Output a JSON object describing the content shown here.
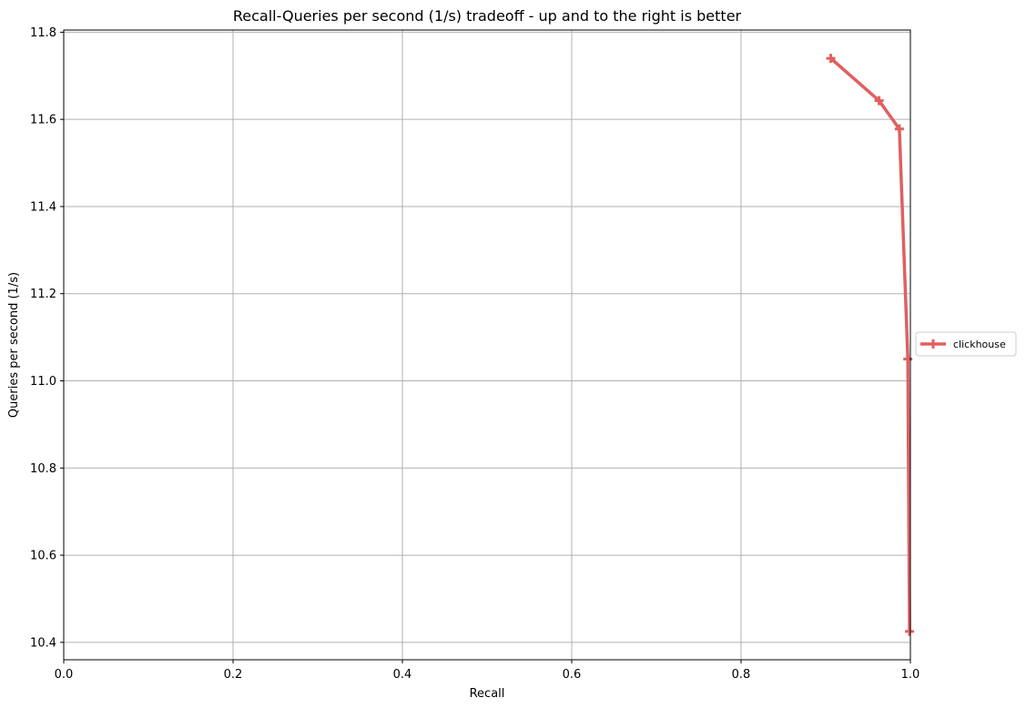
{
  "chart_data": {
    "type": "line",
    "title": "Recall-Queries per second (1/s) tradeoff - up and to the right is better",
    "xlabel": "Recall",
    "ylabel": "Queries per second (1/s)",
    "xlim": [
      0.0,
      1.0
    ],
    "ylim": [
      10.36,
      11.805
    ],
    "grid": true,
    "legend_position": "center-right-outside",
    "xticks": [
      0.0,
      0.2,
      0.4,
      0.6,
      0.8,
      1.0
    ],
    "xtick_labels": [
      "0.0",
      "0.2",
      "0.4",
      "0.6",
      "0.8",
      "1.0"
    ],
    "yticks": [
      10.4,
      10.6,
      10.8,
      11.0,
      11.2,
      11.4,
      11.6,
      11.8
    ],
    "ytick_labels": [
      "10.4",
      "10.6",
      "10.8",
      "11.0",
      "11.2",
      "11.4",
      "11.6",
      "11.8"
    ],
    "series": [
      {
        "name": "clickhouse",
        "color": "#e06060",
        "marker": "plus",
        "x": [
          0.906,
          0.963,
          0.987,
          0.997,
          0.999
        ],
        "y": [
          11.74,
          11.643,
          11.578,
          11.05,
          10.425
        ]
      }
    ]
  }
}
